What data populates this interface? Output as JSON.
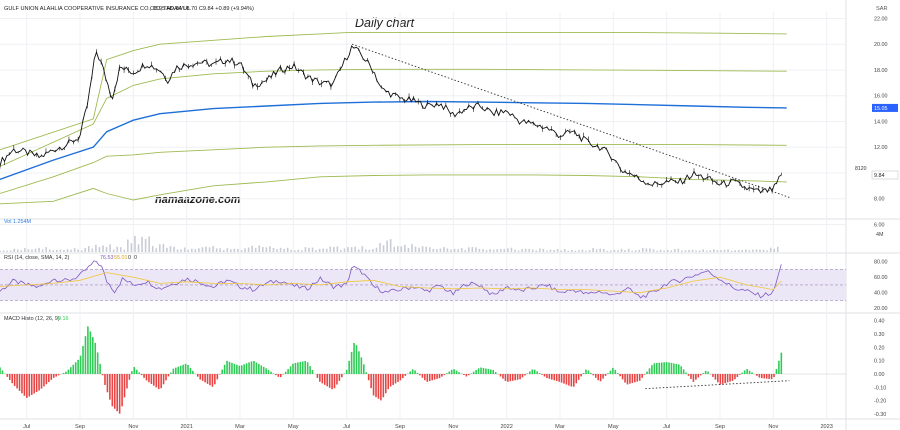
{
  "header": {
    "instrument": "GULF UNION ALAHLIA COOPERATIVE INSURANCE CO., 1D, TADAWUL",
    "ohlc": "O8.95 H9.84 L8.70 C9.84 +0.89 (+9.94%)",
    "currency": "SAR"
  },
  "annotations": {
    "title": "Daily chart",
    "watermark": "namaazone.com",
    "bid_label": "8120"
  },
  "colors": {
    "price": "#111111",
    "green_envelope": "#9fbb53",
    "blue_line": "#1e6fd9",
    "price_tag": "#2962ff",
    "rsi_line": "#7e57c2",
    "rsi_signal": "#f0c63a",
    "rsi_band": "#ece7f7",
    "macd_pos": "#2ecc55",
    "macd_neg": "#e84444",
    "volume": "#c8ccd4",
    "grid": "#eef0f3"
  },
  "chart_data": [
    {
      "type": "line",
      "panel": "price",
      "ylim": [
        6.5,
        22.5
      ],
      "yticks": [
        "22.00",
        "20.00",
        "18.00",
        "16.00",
        "14.00",
        "12.00",
        "10.00",
        "8.00",
        "6.00"
      ],
      "ytick_values": [
        22,
        20,
        18,
        16,
        14,
        12,
        10,
        8,
        6
      ],
      "last_price_label": "15.05",
      "last_price_value": 15.05,
      "current_price_label": "9.84",
      "current_price_value": 9.84,
      "x_labels": [
        "Jul",
        "Sep",
        "Nov",
        "2021",
        "Mar",
        "May",
        "Jul",
        "Sep",
        "Nov",
        "2022",
        "Mar",
        "May",
        "Jul",
        "Sep",
        "Nov",
        "2023"
      ],
      "x_label_months": [
        1,
        3,
        5,
        7,
        9,
        11,
        13,
        15,
        17,
        19,
        21,
        23,
        25,
        27,
        29,
        31
      ],
      "x_range_months": [
        0,
        31.5
      ],
      "series": [
        {
          "role": "close",
          "x": [
            0,
            0.5,
            1,
            1.5,
            2,
            2.5,
            3,
            3.3,
            3.6,
            3.8,
            4,
            4.2,
            4.5,
            5,
            5.5,
            6,
            6.3,
            6.6,
            7,
            7.5,
            8,
            8.5,
            9,
            9.5,
            10,
            10.5,
            11,
            11.5,
            12,
            12.5,
            13,
            13.2,
            13.5,
            14,
            14.3,
            14.6,
            15,
            15.5,
            16,
            16.5,
            17,
            17.5,
            18,
            18.5,
            19,
            19.5,
            20,
            20.5,
            21,
            21.5,
            22,
            22.5,
            23,
            23.3,
            23.6,
            24,
            24.5,
            25,
            25.5,
            26,
            26.5,
            27,
            27.5,
            28,
            28.5,
            29,
            29.3
          ],
          "y": [
            10.8,
            11.8,
            11.6,
            11.2,
            11.8,
            12.2,
            12.8,
            15.5,
            19.5,
            18.5,
            17.2,
            15.8,
            18.2,
            17.8,
            18.5,
            18.0,
            17.2,
            18.2,
            18.4,
            18.6,
            18.4,
            18.8,
            18.5,
            16.8,
            17.2,
            18.0,
            18.3,
            17.5,
            17.0,
            16.9,
            19.0,
            19.8,
            19.3,
            18.0,
            16.5,
            16.2,
            15.8,
            15.6,
            15.2,
            15.4,
            14.5,
            15.0,
            15.2,
            14.6,
            14.8,
            14.0,
            13.8,
            13.5,
            12.9,
            13.2,
            12.4,
            12.0,
            11.2,
            10.2,
            10.0,
            9.5,
            9.1,
            9.3,
            9.3,
            9.9,
            9.6,
            9.1,
            9.3,
            8.8,
            8.5,
            8.7,
            9.84
          ]
        },
        {
          "role": "envelope_upper_outer",
          "x": [
            0,
            3.5,
            4,
            5,
            6,
            8,
            10,
            12,
            13,
            15,
            18,
            21,
            24,
            27,
            29.5
          ],
          "y": [
            11.8,
            14.2,
            18.8,
            19.5,
            20.0,
            20.3,
            20.6,
            20.8,
            20.9,
            20.9,
            20.9,
            20.9,
            20.9,
            20.85,
            20.8
          ]
        },
        {
          "role": "envelope_upper_inner",
          "x": [
            0,
            3.5,
            4,
            5,
            6,
            8,
            10,
            12,
            14,
            18,
            22,
            26,
            29.5
          ],
          "y": [
            10.5,
            13.8,
            15.8,
            16.8,
            17.3,
            17.7,
            17.9,
            18.0,
            18.05,
            18.05,
            18.0,
            17.95,
            17.9
          ]
        },
        {
          "role": "blue_baseline",
          "x": [
            0,
            2,
            3.5,
            4,
            5,
            6,
            8,
            10,
            12,
            14,
            16,
            18,
            20,
            22,
            24,
            26,
            28,
            29.5
          ],
          "y": [
            9.5,
            11.0,
            12.0,
            13.2,
            14.1,
            14.6,
            15.0,
            15.2,
            15.4,
            15.5,
            15.55,
            15.5,
            15.45,
            15.4,
            15.3,
            15.2,
            15.1,
            15.05
          ]
        },
        {
          "role": "envelope_lower_inner",
          "x": [
            0,
            2,
            3.5,
            4,
            5,
            6,
            8,
            10,
            12,
            14,
            18,
            22,
            26,
            29.5
          ],
          "y": [
            8.4,
            9.7,
            10.8,
            11.3,
            11.4,
            11.6,
            11.8,
            12.0,
            12.1,
            12.15,
            12.2,
            12.2,
            12.2,
            12.15
          ]
        },
        {
          "role": "envelope_lower_outer",
          "x": [
            0,
            2,
            3.5,
            4,
            5,
            6,
            8,
            10,
            12,
            14,
            16,
            18,
            20,
            22,
            24,
            26,
            28,
            29.5
          ],
          "y": [
            7.6,
            7.8,
            8.8,
            8.4,
            7.9,
            8.3,
            9.0,
            9.3,
            9.7,
            9.8,
            9.85,
            9.85,
            9.85,
            9.8,
            9.7,
            9.5,
            9.4,
            9.3
          ]
        },
        {
          "role": "trendline_dotted",
          "x": [
            13.2,
            29.6
          ],
          "y": [
            20.0,
            8.1
          ]
        }
      ]
    },
    {
      "type": "bar",
      "panel": "volume",
      "title": "Vol 1.254M",
      "ytick_label": "4M",
      "x_range_months": [
        0,
        31.5
      ],
      "values_millions": [
        0.4,
        0.6,
        0.5,
        0.8,
        0.5,
        0.7,
        0.6,
        1.1,
        1.5,
        0.8,
        2.6,
        3.1,
        1.4,
        1.0,
        0.8,
        0.7,
        0.9,
        0.6,
        0.8,
        0.7,
        1.2,
        0.9,
        0.7,
        0.6,
        0.8,
        0.7,
        0.9,
        0.8,
        1.0,
        0.7,
        1.8,
        2.0,
        1.2,
        0.9,
        0.7,
        0.8,
        0.6,
        0.9,
        0.6,
        0.5,
        0.7,
        0.5,
        0.6,
        0.5,
        0.5,
        0.4,
        0.5,
        0.6,
        0.4,
        0.5,
        0.4,
        0.6,
        0.4,
        0.5,
        0.4,
        0.5,
        0.5,
        0.4,
        0.4,
        0.5,
        0.4,
        1.2
      ],
      "ylim": [
        0,
        5
      ]
    },
    {
      "type": "line",
      "panel": "rsi",
      "title_main": "RSI (14, close, SMA, 14, 2)",
      "value_rsi": "76.53",
      "value_signal": "55.01",
      "value_zero": "0",
      "value_zero2": "0",
      "ylim": [
        15,
        90
      ],
      "yticks": [
        "80.00",
        "60.00",
        "40.00",
        "20.00"
      ],
      "ytick_values": [
        80,
        60,
        40,
        20
      ],
      "band": [
        30,
        70
      ],
      "x_range_months": [
        0,
        31.5
      ],
      "series": [
        {
          "role": "rsi",
          "x": [
            0,
            0.5,
            1,
            1.5,
            2,
            2.5,
            3,
            3.3,
            3.6,
            3.8,
            4,
            4.3,
            4.6,
            5,
            5.5,
            6,
            6.5,
            7,
            7.5,
            8,
            8.5,
            9,
            9.5,
            10,
            10.5,
            11,
            11.5,
            12,
            12.5,
            13,
            13.2,
            13.6,
            14,
            14.5,
            15,
            15.5,
            16,
            16.5,
            17,
            17.5,
            18,
            18.5,
            19,
            19.5,
            20,
            20.5,
            21,
            21.5,
            22,
            22.5,
            23,
            23.5,
            24,
            24.5,
            25,
            25.5,
            26,
            26.5,
            27,
            27.5,
            28,
            28.5,
            29,
            29.3
          ],
          "y": [
            42,
            55,
            50,
            47,
            58,
            55,
            62,
            72,
            81,
            74,
            55,
            42,
            58,
            50,
            55,
            45,
            52,
            58,
            54,
            47,
            56,
            48,
            44,
            52,
            56,
            49,
            45,
            58,
            48,
            50,
            74,
            66,
            48,
            40,
            44,
            48,
            42,
            49,
            38,
            52,
            50,
            36,
            48,
            42,
            46,
            50,
            40,
            44,
            38,
            42,
            36,
            46,
            34,
            40,
            52,
            56,
            62,
            68,
            58,
            46,
            42,
            36,
            40,
            76.5
          ]
        },
        {
          "role": "signal",
          "x": [
            0,
            1,
            2,
            3,
            4,
            5,
            6,
            7,
            8,
            9,
            10,
            11,
            12,
            13,
            14,
            15,
            16,
            17,
            18,
            19,
            20,
            21,
            22,
            23,
            24,
            25,
            26,
            27,
            28,
            29,
            29.3
          ],
          "y": [
            48,
            50,
            52,
            56,
            66,
            60,
            52,
            54,
            52,
            52,
            50,
            52,
            50,
            54,
            56,
            48,
            46,
            45,
            46,
            45,
            46,
            44,
            44,
            42,
            40,
            46,
            55,
            60,
            50,
            44,
            55
          ]
        }
      ]
    },
    {
      "type": "bar",
      "panel": "macd",
      "title": "MACD Histo (12, 26, 9)",
      "value": "0.16",
      "ylim": [
        -0.33,
        0.45
      ],
      "yticks": [
        "0.40",
        "0.30",
        "0.20",
        "0.10",
        "0.00",
        "-0.10",
        "-0.20",
        "-0.30"
      ],
      "ytick_values": [
        0.4,
        0.3,
        0.2,
        0.1,
        0.0,
        -0.1,
        -0.2,
        -0.3
      ],
      "x_range_months": [
        0,
        31.5
      ],
      "x": [
        0,
        0.5,
        1,
        1.5,
        2,
        2.5,
        3,
        3.3,
        3.6,
        3.9,
        4.2,
        4.5,
        4.8,
        5,
        5.5,
        6,
        6.5,
        7,
        7.5,
        8,
        8.5,
        9,
        9.5,
        10,
        10.5,
        11,
        11.5,
        12,
        12.5,
        13,
        13.3,
        13.6,
        14,
        14.3,
        14.6,
        15,
        15.5,
        16,
        16.5,
        17,
        17.5,
        18,
        18.5,
        19,
        19.5,
        20,
        20.5,
        21,
        21.5,
        22,
        22.5,
        23,
        23.5,
        24,
        24.5,
        25,
        25.5,
        26,
        26.5,
        27,
        27.5,
        28,
        28.5,
        29,
        29.3
      ],
      "values": [
        0.05,
        -0.08,
        -0.18,
        -0.12,
        -0.03,
        0.02,
        0.12,
        0.36,
        0.22,
        -0.06,
        -0.24,
        -0.3,
        -0.08,
        0.06,
        -0.05,
        -0.12,
        0.04,
        0.08,
        -0.04,
        -0.1,
        0.1,
        0.06,
        0.1,
        0.04,
        -0.03,
        0.08,
        0.1,
        -0.06,
        -0.12,
        0.03,
        0.25,
        0.1,
        -0.16,
        -0.2,
        -0.1,
        -0.05,
        0.04,
        -0.06,
        -0.03,
        0.04,
        -0.02,
        0.05,
        0.03,
        -0.06,
        -0.04,
        0.04,
        -0.03,
        -0.06,
        -0.1,
        0.04,
        -0.06,
        0.05,
        -0.08,
        -0.05,
        0.08,
        0.09,
        0.07,
        -0.06,
        0.03,
        -0.08,
        -0.05,
        0.04,
        -0.03,
        -0.04,
        0.16
      ],
      "trendline_dotted": {
        "x": [
          24.2,
          29.6
        ],
        "y": [
          -0.11,
          -0.05
        ]
      }
    }
  ]
}
